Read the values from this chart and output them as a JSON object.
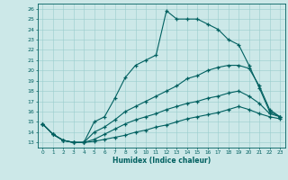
{
  "xlabel": "Humidex (Indice chaleur)",
  "bg_color": "#cce8e8",
  "line_color": "#006060",
  "grid_color": "#99cccc",
  "xlim": [
    -0.5,
    23.5
  ],
  "ylim": [
    12.5,
    26.5
  ],
  "yticks": [
    13,
    14,
    15,
    16,
    17,
    18,
    19,
    20,
    21,
    22,
    23,
    24,
    25,
    26
  ],
  "xticks": [
    0,
    1,
    2,
    3,
    4,
    5,
    6,
    7,
    8,
    9,
    10,
    11,
    12,
    13,
    14,
    15,
    16,
    17,
    18,
    19,
    20,
    21,
    22,
    23
  ],
  "series": [
    [
      14.8,
      13.8,
      13.2,
      13.0,
      13.0,
      15.0,
      15.5,
      17.3,
      19.3,
      20.5,
      21.0,
      21.5,
      25.8,
      25.0,
      25.0,
      25.0,
      24.5,
      24.0,
      23.0,
      22.5,
      20.5,
      18.3,
      16.0,
      15.5
    ],
    [
      14.8,
      13.8,
      13.2,
      13.0,
      13.0,
      14.0,
      14.5,
      15.2,
      16.0,
      16.5,
      17.0,
      17.5,
      18.0,
      18.5,
      19.2,
      19.5,
      20.0,
      20.3,
      20.5,
      20.5,
      20.2,
      18.5,
      16.2,
      15.5
    ],
    [
      14.8,
      13.8,
      13.2,
      13.0,
      13.0,
      13.3,
      13.8,
      14.3,
      14.8,
      15.2,
      15.5,
      15.8,
      16.2,
      16.5,
      16.8,
      17.0,
      17.3,
      17.5,
      17.8,
      18.0,
      17.5,
      16.8,
      15.8,
      15.5
    ],
    [
      14.8,
      13.8,
      13.2,
      13.0,
      13.0,
      13.1,
      13.3,
      13.5,
      13.7,
      14.0,
      14.2,
      14.5,
      14.7,
      15.0,
      15.3,
      15.5,
      15.7,
      15.9,
      16.2,
      16.5,
      16.2,
      15.8,
      15.5,
      15.3
    ]
  ]
}
